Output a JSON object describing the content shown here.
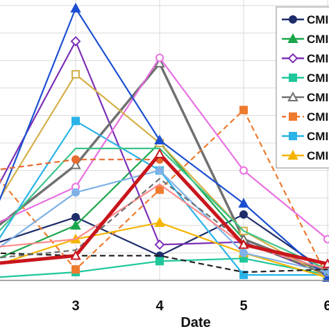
{
  "chart_data": {
    "type": "line",
    "xlabel": "Date",
    "ylabel": "",
    "title": "",
    "xlim": [
      2.0,
      6.0
    ],
    "ylim": [
      0,
      100
    ],
    "x_ticks": [
      3,
      4,
      5,
      6
    ],
    "x_tick_labels": [
      "3",
      "4",
      "5",
      "6"
    ],
    "grid": "vertical and horizontal",
    "legend": {
      "placement": "top-right",
      "labels": [
        "CMI",
        "CMI",
        "CMI",
        "CMI",
        "CMI",
        "CMI",
        "CMI",
        "CMI"
      ]
    },
    "series": [
      {
        "label_index": 0,
        "color": "#1f2d6b",
        "marker": "circle",
        "dash": "solid",
        "x": [
          2.0,
          3.0,
          4.0,
          5.0,
          6.0
        ],
        "values": [
          13,
          23,
          9,
          24,
          3
        ]
      },
      {
        "label_index": 1,
        "color": "#1aa64a",
        "marker": "triangle",
        "dash": "solid",
        "x": [
          2.0,
          3.0,
          4.0,
          5.0,
          6.0
        ],
        "values": [
          7,
          20,
          50,
          15,
          2
        ]
      },
      {
        "label_index": 2,
        "color": "#7b2fb5",
        "marker": "diamond-open",
        "dash": "solid",
        "x": [
          2.0,
          3.0,
          4.0,
          5.0,
          6.0
        ],
        "values": [
          30,
          87,
          13,
          14,
          2
        ]
      },
      {
        "label_index": 3,
        "color": "#1fc79a",
        "marker": "square",
        "dash": "solid",
        "x": [
          2.0,
          3.0,
          4.0,
          5.0,
          6.0
        ],
        "values": [
          1,
          3,
          7,
          8,
          2
        ]
      },
      {
        "label_index": 4,
        "color": "#707070",
        "marker": "triangle-open",
        "dash": "solid",
        "x": [
          2.0,
          3.0,
          4.0,
          5.0,
          6.0
        ],
        "values": [
          18,
          42,
          79,
          15,
          3
        ]
      },
      {
        "label_index": 5,
        "color": "#ee7a2e",
        "marker": "square",
        "dash": "dashed",
        "x": [
          2.0,
          3.0,
          4.0,
          5.0,
          6.0
        ],
        "values": [
          40,
          4,
          33,
          62,
          1
        ]
      },
      {
        "label_index": 6,
        "color": "#29b3e8",
        "marker": "square",
        "dash": "solid",
        "x": [
          2.0,
          3.0,
          4.0,
          5.0,
          6.0
        ],
        "values": [
          11,
          58,
          40,
          2,
          2
        ]
      },
      {
        "label_index": 7,
        "color": "#f5b400",
        "marker": "triangle",
        "dash": "solid",
        "x": [
          2.0,
          3.0,
          4.0,
          5.0,
          6.0
        ],
        "values": [
          5,
          15,
          21,
          10,
          1
        ]
      },
      {
        "color": "#e86fe0",
        "marker": "circle-open",
        "dash": "solid",
        "x": [
          2.0,
          3.0,
          4.0,
          5.0,
          6.0
        ],
        "values": [
          20,
          34,
          81,
          40,
          15
        ]
      },
      {
        "color": "#d4b04a",
        "marker": "square-open",
        "dash": "solid",
        "x": [
          2.0,
          3.0,
          4.0,
          5.0,
          6.0
        ],
        "values": [
          25,
          75,
          50,
          18,
          1
        ]
      },
      {
        "color": "#1a4fd1",
        "marker": "triangle",
        "dash": "solid",
        "x": [
          2.0,
          3.0,
          4.0,
          5.0,
          6.0
        ],
        "values": [
          22,
          99,
          51,
          28,
          1
        ]
      },
      {
        "color": "#3cc48a",
        "marker": "none",
        "dash": "solid",
        "x": [
          2.0,
          3.0,
          4.0,
          5.0,
          6.0
        ],
        "values": [
          15,
          48,
          48,
          18,
          4
        ]
      },
      {
        "color": "#7fb1e6",
        "marker": "circle",
        "dash": "solid",
        "x": [
          2.0,
          3.0,
          4.0,
          5.0,
          6.0
        ],
        "values": [
          10,
          32,
          40,
          10,
          3
        ]
      },
      {
        "color": "#ff8a8a",
        "marker": "none",
        "dash": "solid",
        "x": [
          2.0,
          3.0,
          4.0,
          5.0,
          6.0
        ],
        "values": [
          12,
          15,
          35,
          13,
          4
        ]
      },
      {
        "color": "#e86a2e",
        "marker": "circle",
        "dash": "dashed",
        "x": [
          2.0,
          3.0,
          4.0
        ],
        "values": [
          40,
          44,
          44
        ]
      },
      {
        "color": "#222222",
        "marker": "none",
        "dash": "dashed",
        "x": [
          2.0,
          3.0,
          4.0,
          5.0,
          6.0
        ],
        "values": [
          10,
          9,
          9,
          3,
          4
        ]
      },
      {
        "color": "#707070",
        "marker": "none",
        "dash": "dashed",
        "x": [
          2.0,
          3.0,
          4.0,
          5.0,
          6.0
        ],
        "values": [
          8,
          11,
          37,
          14,
          2
        ]
      },
      {
        "color": "#c8161c",
        "marker": "triangle-open",
        "dash": "solid",
        "x": [
          2.0,
          3.0,
          4.0,
          5.0,
          6.0
        ],
        "values": [
          6,
          9,
          46,
          13,
          6
        ]
      }
    ]
  }
}
